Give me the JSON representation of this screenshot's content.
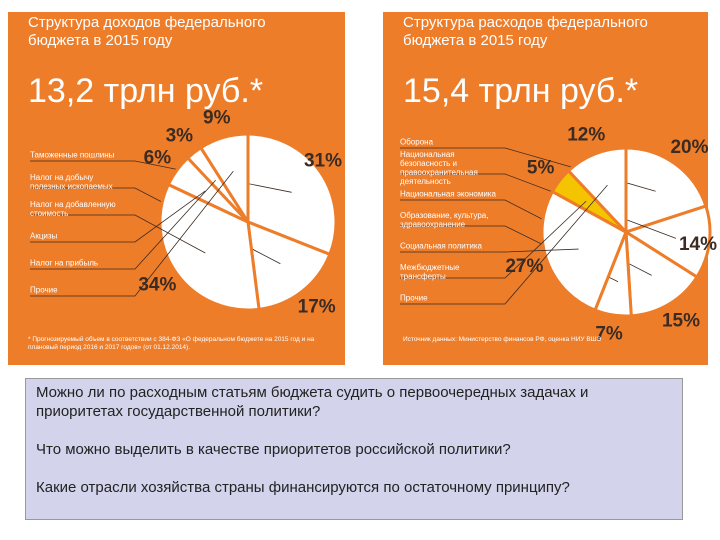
{
  "chart_data": [
    {
      "type": "pie",
      "title": "Структура доходов федерального бюджета в 2015 году",
      "subtitle": "13,2 трлн руб.*",
      "categories": [
        "Таможенные пошлины",
        "Налог на добычу полезных ископаемых",
        "Налог на добавленную стоимость",
        "Акцизы",
        "Налог на прибыль",
        "Прочие"
      ],
      "values": [
        31,
        17,
        34,
        6,
        3,
        9
      ],
      "value_labels": [
        "31%",
        "17%",
        "34%",
        "6%",
        "3%",
        "9%"
      ],
      "colors": [
        "#ffffff",
        "#ffffff",
        "#ffffff",
        "#ffffff",
        "#ffffff",
        "#ffffff"
      ],
      "note": "* Прогнозируемый объем в соответствии с 384-ФЗ «О федеральном бюджете на 2015 год и на плановый период 2016 и 2017 годов» (от 01.12.2014)."
    },
    {
      "type": "pie",
      "title": "Структура расходов федерального бюджета в 2015 году",
      "subtitle": "15,4 трлн руб.*",
      "categories": [
        "Оборона",
        "Национальная безопасность и правоохранительная деятельность",
        "Национальная экономика",
        "Образование, культура, здравоохранение",
        "Социальная политика",
        "Межбюджетные трансферты",
        "Прочие"
      ],
      "values": [
        20,
        14,
        15,
        7,
        27,
        5,
        12
      ],
      "value_labels": [
        "20%",
        "14%",
        "15%",
        "7%",
        "27%",
        "5%",
        "12%"
      ],
      "colors": [
        "#ffffff",
        "#ffffff",
        "#ffffff",
        "#ffffff",
        "#ffffff",
        "#f5c400",
        "#ffffff"
      ],
      "note": "Источник данных: Министерство финансов РФ, оценка НИУ ВШЭ"
    }
  ],
  "text_box": {
    "paragraphs": [
      "Можно ли по расходным статьям бюджета судить о первоочередных задачах и приоритетах государственной политики?",
      "Что можно выделить в качестве приоритетов российской политики?",
      "Какие отрасли хозяйства страны финансируются по остаточному принципу?"
    ]
  }
}
